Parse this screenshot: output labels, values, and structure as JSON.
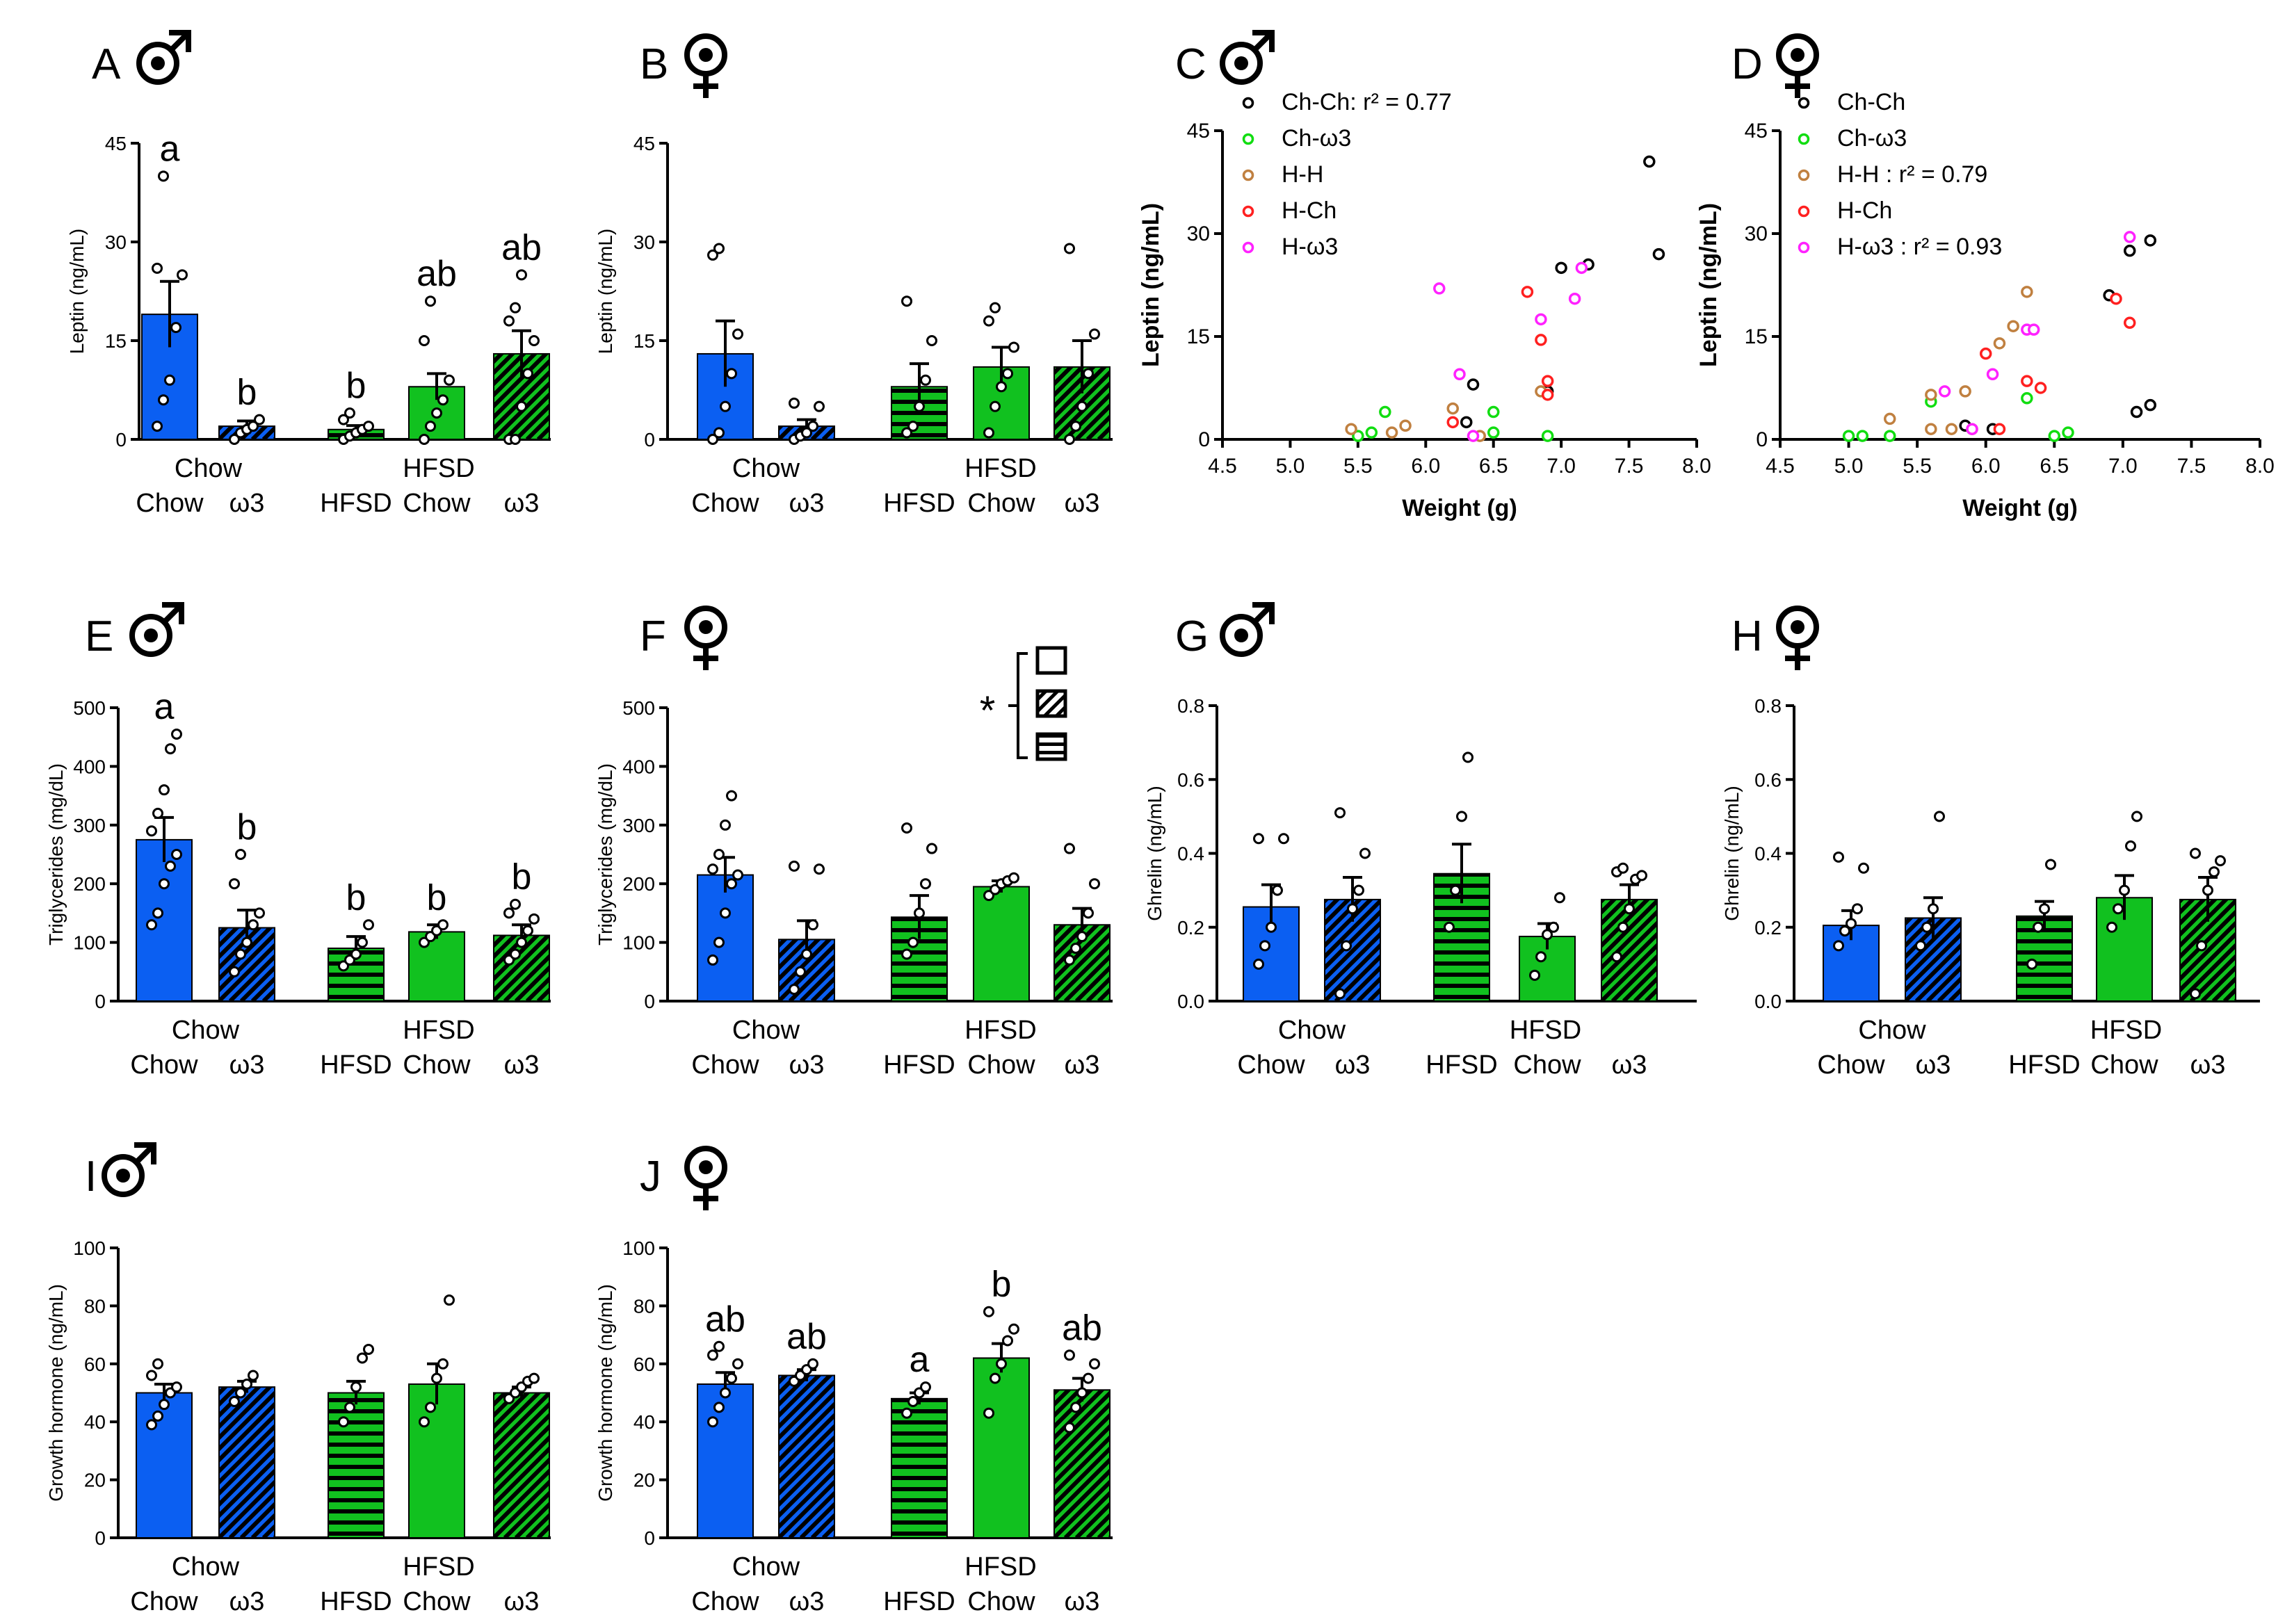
{
  "figure": {
    "colors": {
      "chow": "#0b5ff2",
      "hfsd": "#11c11f",
      "dark": "#000000"
    },
    "significance": {
      "star": "*"
    }
  },
  "chart_data": [
    {
      "id": "A",
      "type": "bar",
      "panel_letter": "A",
      "sex": "male",
      "ylabel": "Leptin (ng/mL)",
      "ylim": [
        0,
        45
      ],
      "yticks": [
        "0",
        "15",
        "30",
        "45"
      ],
      "groups": [
        {
          "label": "Chow",
          "under": [
            0,
            1
          ]
        },
        {
          "label": "HFSD",
          "under": [
            2,
            3,
            4
          ]
        }
      ],
      "categories": [
        "Chow",
        "ω3",
        "HFSD",
        "Chow",
        "ω3"
      ],
      "values": [
        19,
        2,
        1.5,
        8,
        13
      ],
      "errors": [
        5,
        0.8,
        0.6,
        2,
        3.5
      ],
      "letters": [
        "a",
        "b",
        "b",
        "ab",
        "ab"
      ],
      "points": [
        [
          2,
          6,
          9,
          17,
          25,
          26,
          40
        ],
        [
          0,
          1,
          1.5,
          2,
          3
        ],
        [
          0,
          0.5,
          1,
          1.5,
          2,
          3,
          4
        ],
        [
          0,
          2,
          4,
          6,
          9,
          15,
          21
        ],
        [
          0,
          0,
          5,
          10,
          15,
          18,
          20,
          25
        ]
      ]
    },
    {
      "id": "B",
      "type": "bar",
      "panel_letter": "B",
      "sex": "female",
      "ylabel": "Leptin (ng/mL)",
      "ylim": [
        0,
        45
      ],
      "yticks": [
        "0",
        "15",
        "30",
        "45"
      ],
      "groups": [
        {
          "label": "Chow",
          "under": [
            0,
            1
          ]
        },
        {
          "label": "HFSD",
          "under": [
            2,
            3,
            4
          ]
        }
      ],
      "categories": [
        "Chow",
        "ω3",
        "HFSD",
        "Chow",
        "ω3"
      ],
      "values": [
        13,
        2,
        8,
        11,
        11
      ],
      "errors": [
        5,
        1,
        3.5,
        3,
        4
      ],
      "letters": [],
      "points": [
        [
          0,
          1,
          5,
          10,
          16,
          28,
          29
        ],
        [
          0,
          0.5,
          1,
          2,
          5,
          5.5
        ],
        [
          1,
          2,
          5,
          9,
          15,
          21
        ],
        [
          1,
          5,
          8,
          10,
          14,
          18,
          20
        ],
        [
          0,
          2,
          5,
          10,
          16,
          29
        ]
      ]
    },
    {
      "id": "C",
      "type": "scatter",
      "panel_letter": "C",
      "sex": "male",
      "xlabel": "Weight (g)",
      "ylabel": "Leptin (ng/mL)",
      "xlim": [
        4.5,
        8.0
      ],
      "ylim": [
        0,
        45
      ],
      "xticks": [
        "4.5",
        "5.0",
        "5.5",
        "6.0",
        "6.5",
        "7.0",
        "7.5",
        "8.0"
      ],
      "yticks": [
        "0",
        "15",
        "30",
        "45"
      ],
      "series": [
        {
          "name": "Ch-Ch",
          "stat": ": r² = 0.77",
          "color": "#000000",
          "points": [
            [
              6.35,
              8
            ],
            [
              6.3,
              2.5
            ],
            [
              6.9,
              7
            ],
            [
              7.0,
              25
            ],
            [
              7.2,
              25.5
            ],
            [
              7.65,
              40.5
            ],
            [
              7.72,
              27
            ]
          ]
        },
        {
          "name": "Ch-ω3",
          "stat": "",
          "color": "#11dd11",
          "points": [
            [
              5.5,
              0.5
            ],
            [
              5.6,
              1
            ],
            [
              5.7,
              4
            ],
            [
              6.5,
              4
            ],
            [
              6.5,
              1
            ],
            [
              6.9,
              0.5
            ]
          ]
        },
        {
          "name": "H-H",
          "stat": "",
          "color": "#c08040",
          "points": [
            [
              5.45,
              1.5
            ],
            [
              5.75,
              1
            ],
            [
              5.85,
              2
            ],
            [
              6.2,
              4.5
            ],
            [
              6.4,
              0.5
            ],
            [
              6.85,
              7
            ]
          ]
        },
        {
          "name": "H-Ch",
          "stat": "",
          "color": "#ff2020",
          "points": [
            [
              6.2,
              2.5
            ],
            [
              6.75,
              21.5
            ],
            [
              6.85,
              14.5
            ],
            [
              6.9,
              8.5
            ],
            [
              6.9,
              6.5
            ]
          ]
        },
        {
          "name": "H-ω3",
          "stat": "",
          "color": "#ff22ff",
          "points": [
            [
              6.1,
              22
            ],
            [
              6.25,
              9.5
            ],
            [
              6.35,
              0.5
            ],
            [
              6.85,
              17.5
            ],
            [
              7.1,
              20.5
            ],
            [
              7.15,
              25
            ]
          ]
        }
      ]
    },
    {
      "id": "D",
      "type": "scatter",
      "panel_letter": "D",
      "sex": "female",
      "xlabel": "Weight (g)",
      "ylabel": "Leptin (ng/mL)",
      "xlim": [
        4.5,
        8.0
      ],
      "ylim": [
        0,
        45
      ],
      "xticks": [
        "4.5",
        "5.0",
        "5.5",
        "6.0",
        "6.5",
        "7.0",
        "7.5",
        "8.0"
      ],
      "yticks": [
        "0",
        "15",
        "30",
        "45"
      ],
      "series": [
        {
          "name": "Ch-Ch",
          "stat": "",
          "color": "#000000",
          "points": [
            [
              5.85,
              2
            ],
            [
              6.05,
              1.5
            ],
            [
              6.9,
              21
            ],
            [
              7.05,
              27.5
            ],
            [
              7.2,
              29
            ],
            [
              7.1,
              4
            ],
            [
              7.2,
              5
            ]
          ]
        },
        {
          "name": "Ch-ω3",
          "stat": "",
          "color": "#11dd11",
          "points": [
            [
              5.0,
              0.5
            ],
            [
              5.1,
              0.5
            ],
            [
              5.3,
              0.5
            ],
            [
              5.6,
              5.5
            ],
            [
              6.3,
              6
            ],
            [
              6.5,
              0.5
            ],
            [
              6.6,
              1
            ]
          ]
        },
        {
          "name": "H-H",
          "stat": " : r² = 0.79",
          "color": "#c08040",
          "points": [
            [
              5.3,
              3
            ],
            [
              5.6,
              1.5
            ],
            [
              5.6,
              6.5
            ],
            [
              5.75,
              1.5
            ],
            [
              5.9,
              1.5
            ],
            [
              6.1,
              14
            ],
            [
              6.2,
              16.5
            ],
            [
              6.3,
              21.5
            ],
            [
              5.85,
              7
            ]
          ]
        },
        {
          "name": "H-Ch",
          "stat": "",
          "color": "#ff2020",
          "points": [
            [
              6.0,
              12.5
            ],
            [
              6.1,
              1.5
            ],
            [
              6.3,
              8.5
            ],
            [
              6.4,
              7.5
            ],
            [
              6.95,
              20.5
            ],
            [
              7.05,
              17
            ]
          ]
        },
        {
          "name": "H-ω3",
          "stat": " : r² = 0.93",
          "color": "#ff22ff",
          "points": [
            [
              5.9,
              1.5
            ],
            [
              6.05,
              9.5
            ],
            [
              6.3,
              16
            ],
            [
              6.35,
              16
            ],
            [
              7.05,
              29.5
            ],
            [
              5.7,
              7
            ]
          ]
        }
      ]
    },
    {
      "id": "E",
      "type": "bar",
      "panel_letter": "E",
      "sex": "male",
      "ylabel": "Triglycerides (mg/dL)",
      "ylim": [
        0,
        500
      ],
      "yticks": [
        "0",
        "100",
        "200",
        "300",
        "400",
        "500"
      ],
      "groups": [
        {
          "label": "Chow",
          "under": [
            0,
            1
          ]
        },
        {
          "label": "HFSD",
          "under": [
            2,
            3,
            4
          ]
        }
      ],
      "categories": [
        "Chow",
        "ω3",
        "HFSD",
        "Chow",
        "ω3"
      ],
      "values": [
        275,
        125,
        90,
        118,
        112
      ],
      "errors": [
        38,
        30,
        20,
        12,
        18
      ],
      "letters": [
        "a",
        "b",
        "b",
        "b",
        "b"
      ],
      "points": [
        [
          130,
          150,
          200,
          230,
          250,
          290,
          320,
          360,
          430,
          455
        ],
        [
          50,
          80,
          100,
          130,
          150,
          200,
          250
        ],
        [
          60,
          70,
          80,
          100,
          130
        ],
        [
          100,
          110,
          120,
          130
        ],
        [
          70,
          80,
          100,
          120,
          140,
          150,
          165
        ]
      ]
    },
    {
      "id": "F",
      "type": "bar",
      "panel_letter": "F",
      "sex": "female",
      "ylabel": "Triglycerides (mg/dL)",
      "ylim": [
        0,
        500
      ],
      "yticks": [
        "0",
        "100",
        "200",
        "300",
        "400",
        "500"
      ],
      "groups": [
        {
          "label": "Chow",
          "under": [
            0,
            1
          ]
        },
        {
          "label": "HFSD",
          "under": [
            2,
            3,
            4
          ]
        }
      ],
      "categories": [
        "Chow",
        "ω3",
        "HFSD",
        "Chow",
        "ω3"
      ],
      "values": [
        215,
        105,
        143,
        195,
        130
      ],
      "errors": [
        30,
        32,
        37,
        10,
        28
      ],
      "letters": [],
      "points": [
        [
          70,
          100,
          150,
          200,
          215,
          225,
          250,
          300,
          350
        ],
        [
          20,
          50,
          80,
          130,
          225,
          230
        ],
        [
          80,
          100,
          150,
          200,
          260,
          295
        ],
        [
          180,
          190,
          200,
          205,
          210
        ],
        [
          70,
          90,
          110,
          150,
          200,
          260
        ]
      ]
    },
    {
      "id": "G",
      "type": "bar",
      "panel_letter": "G",
      "sex": "male",
      "ylabel": "Ghrelin (ng/mL)",
      "ylim": [
        0,
        0.8
      ],
      "yticks": [
        "0.0",
        "0.2",
        "0.4",
        "0.6",
        "0.8"
      ],
      "groups": [
        {
          "label": "Chow",
          "under": [
            0,
            1
          ]
        },
        {
          "label": "HFSD",
          "under": [
            2,
            3,
            4
          ]
        }
      ],
      "categories": [
        "Chow",
        "ω3",
        "HFSD",
        "Chow",
        "ω3"
      ],
      "values": [
        0.255,
        0.275,
        0.345,
        0.175,
        0.275
      ],
      "errors": [
        0.06,
        0.06,
        0.08,
        0.035,
        0.04
      ],
      "letters": [],
      "points": [
        [
          0.1,
          0.15,
          0.2,
          0.3,
          0.44,
          0.44
        ],
        [
          0.02,
          0.15,
          0.25,
          0.3,
          0.4,
          0.51
        ],
        [
          0.2,
          0.3,
          0.5,
          0.66
        ],
        [
          0.07,
          0.12,
          0.18,
          0.2,
          0.28
        ],
        [
          0.12,
          0.2,
          0.25,
          0.33,
          0.34,
          0.35,
          0.36
        ]
      ]
    },
    {
      "id": "H",
      "type": "bar",
      "panel_letter": "H",
      "sex": "female",
      "ylabel": "Ghrelin (ng/mL)",
      "ylim": [
        0,
        0.8
      ],
      "yticks": [
        "0.0",
        "0.2",
        "0.4",
        "0.6",
        "0.8"
      ],
      "groups": [
        {
          "label": "Chow",
          "under": [
            0,
            1
          ]
        },
        {
          "label": "HFSD",
          "under": [
            2,
            3,
            4
          ]
        }
      ],
      "categories": [
        "Chow",
        "ω3",
        "HFSD",
        "Chow",
        "ω3"
      ],
      "values": [
        0.205,
        0.225,
        0.23,
        0.28,
        0.275
      ],
      "errors": [
        0.04,
        0.055,
        0.04,
        0.06,
        0.06
      ],
      "letters": [],
      "points": [
        [
          0.15,
          0.19,
          0.21,
          0.25,
          0.36,
          0.39
        ],
        [
          0.15,
          0.2,
          0.25,
          0.5
        ],
        [
          0.1,
          0.2,
          0.25,
          0.37
        ],
        [
          0.2,
          0.25,
          0.3,
          0.42,
          0.5
        ],
        [
          0.02,
          0.15,
          0.3,
          0.35,
          0.38,
          0.4
        ]
      ]
    },
    {
      "id": "I",
      "type": "bar",
      "panel_letter": "I",
      "sex": "male",
      "ylabel": "Growth hormone (ng/mL)",
      "ylim": [
        0,
        100
      ],
      "yticks": [
        "0",
        "20",
        "40",
        "60",
        "80",
        "100"
      ],
      "groups": [
        {
          "label": "Chow",
          "under": [
            0,
            1
          ]
        },
        {
          "label": "HFSD",
          "under": [
            2,
            3,
            4
          ]
        }
      ],
      "categories": [
        "Chow",
        "ω3",
        "HFSD",
        "Chow",
        "ω3"
      ],
      "values": [
        50,
        52,
        50,
        53,
        50
      ],
      "errors": [
        3,
        2,
        4,
        7,
        2
      ],
      "letters": [],
      "points": [
        [
          39,
          42,
          46,
          50,
          52,
          56,
          60
        ],
        [
          47,
          50,
          53,
          56
        ],
        [
          40,
          45,
          52,
          62,
          65
        ],
        [
          40,
          45,
          55,
          60,
          82
        ],
        [
          48,
          50,
          52,
          54,
          55
        ]
      ]
    },
    {
      "id": "J",
      "type": "bar",
      "panel_letter": "J",
      "sex": "female",
      "ylabel": "Growth hormone (ng/mL)",
      "ylim": [
        0,
        100
      ],
      "yticks": [
        "0",
        "20",
        "40",
        "60",
        "80",
        "100"
      ],
      "groups": [
        {
          "label": "Chow",
          "under": [
            0,
            1
          ]
        },
        {
          "label": "HFSD",
          "under": [
            2,
            3,
            4
          ]
        }
      ],
      "categories": [
        "Chow",
        "ω3",
        "HFSD",
        "Chow",
        "ω3"
      ],
      "values": [
        53,
        56,
        48,
        62,
        51
      ],
      "errors": [
        4,
        2,
        2,
        5,
        4
      ],
      "letters": [
        "ab",
        "ab",
        "a",
        "b",
        "ab"
      ],
      "points": [
        [
          40,
          45,
          50,
          55,
          60,
          63,
          66
        ],
        [
          54,
          56,
          58,
          60
        ],
        [
          43,
          47,
          50,
          52
        ],
        [
          43,
          55,
          60,
          68,
          72,
          78
        ],
        [
          38,
          45,
          50,
          55,
          60,
          63
        ]
      ]
    }
  ]
}
